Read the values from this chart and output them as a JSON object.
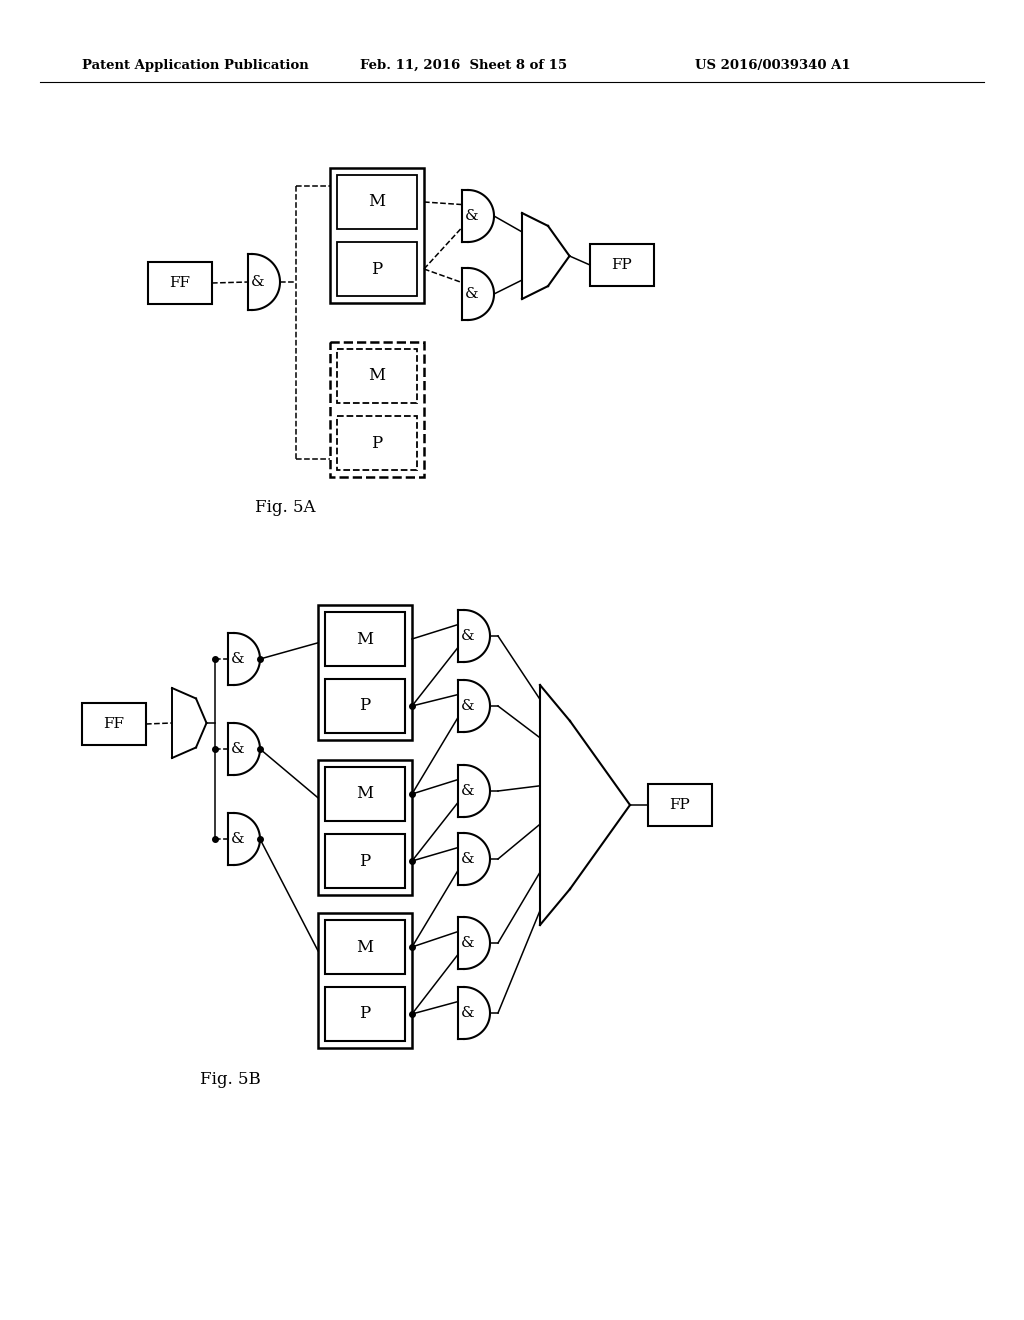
{
  "title_left": "Patent Application Publication",
  "title_mid": "Feb. 11, 2016  Sheet 8 of 15",
  "title_right": "US 2016/0039340 A1",
  "bg_color": "#ffffff",
  "fig5a_label": "Fig. 5A",
  "fig5b_label": "Fig. 5B"
}
